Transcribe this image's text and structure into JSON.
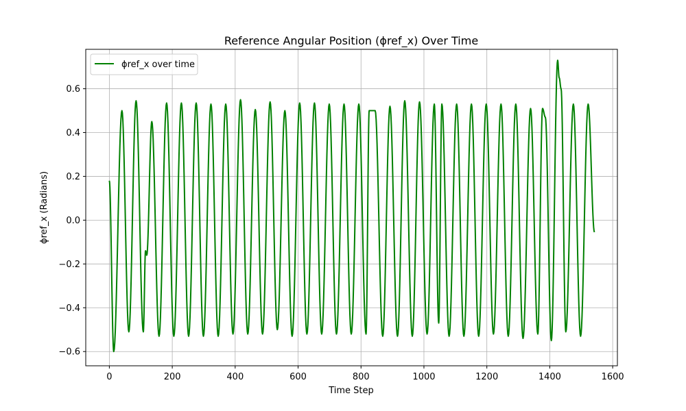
{
  "chart_data": {
    "type": "line",
    "title": "Reference Angular Position (ϕref_x) Over Time",
    "xlabel": "Time Step",
    "ylabel": "ϕref_x (Radians)",
    "xlim": [
      -75,
      1615
    ],
    "ylim": [
      -0.665,
      0.78
    ],
    "xticks": [
      0,
      200,
      400,
      600,
      800,
      1000,
      1200,
      1400,
      1600
    ],
    "yticks": [
      -0.6,
      -0.4,
      -0.2,
      0.0,
      0.2,
      0.4,
      0.6
    ],
    "xtick_labels": [
      "0",
      "200",
      "400",
      "600",
      "800",
      "1000",
      "1200",
      "1400",
      "1600"
    ],
    "ytick_labels": [
      "−0.6",
      "−0.4",
      "−0.2",
      "0.0",
      "0.2",
      "0.4",
      "0.6"
    ],
    "grid": true,
    "legend_position": "top-left",
    "series": [
      {
        "name": "ϕref_x over time",
        "color": "#008000",
        "x": [
          0,
          14,
          40,
          62,
          85,
          108,
          115,
          119,
          135,
          158,
          182,
          205,
          229,
          252,
          276,
          299,
          323,
          346,
          370,
          393,
          417,
          440,
          464,
          487,
          511,
          534,
          558,
          581,
          605,
          628,
          652,
          675,
          699,
          722,
          746,
          769,
          793,
          816,
          826,
          845,
          869,
          892,
          916,
          939,
          963,
          986,
          1010,
          1033,
          1047,
          1057,
          1080,
          1104,
          1127,
          1151,
          1174,
          1198,
          1221,
          1245,
          1268,
          1292,
          1315,
          1339,
          1362,
          1377,
          1386,
          1405,
          1425,
          1430,
          1436,
          1451,
          1475,
          1498,
          1522,
          1542
        ],
        "y": [
          0.18,
          -0.6,
          0.5,
          -0.51,
          0.545,
          -0.51,
          -0.14,
          -0.16,
          0.45,
          -0.53,
          0.535,
          -0.53,
          0.535,
          -0.53,
          0.535,
          -0.53,
          0.53,
          -0.53,
          0.53,
          -0.52,
          0.55,
          -0.52,
          0.505,
          -0.52,
          0.54,
          -0.5,
          0.5,
          -0.53,
          0.535,
          -0.52,
          0.535,
          -0.52,
          0.53,
          -0.52,
          0.53,
          -0.52,
          0.53,
          -0.52,
          0.5,
          0.5,
          -0.53,
          0.52,
          -0.53,
          0.545,
          -0.53,
          0.54,
          -0.52,
          0.53,
          -0.47,
          0.53,
          -0.53,
          0.53,
          -0.53,
          0.53,
          -0.53,
          0.53,
          -0.52,
          0.53,
          -0.53,
          0.53,
          -0.54,
          0.51,
          -0.52,
          0.51,
          0.47,
          -0.55,
          0.73,
          0.65,
          0.6,
          -0.51,
          0.53,
          -0.53,
          0.53,
          -0.055
        ]
      }
    ]
  }
}
